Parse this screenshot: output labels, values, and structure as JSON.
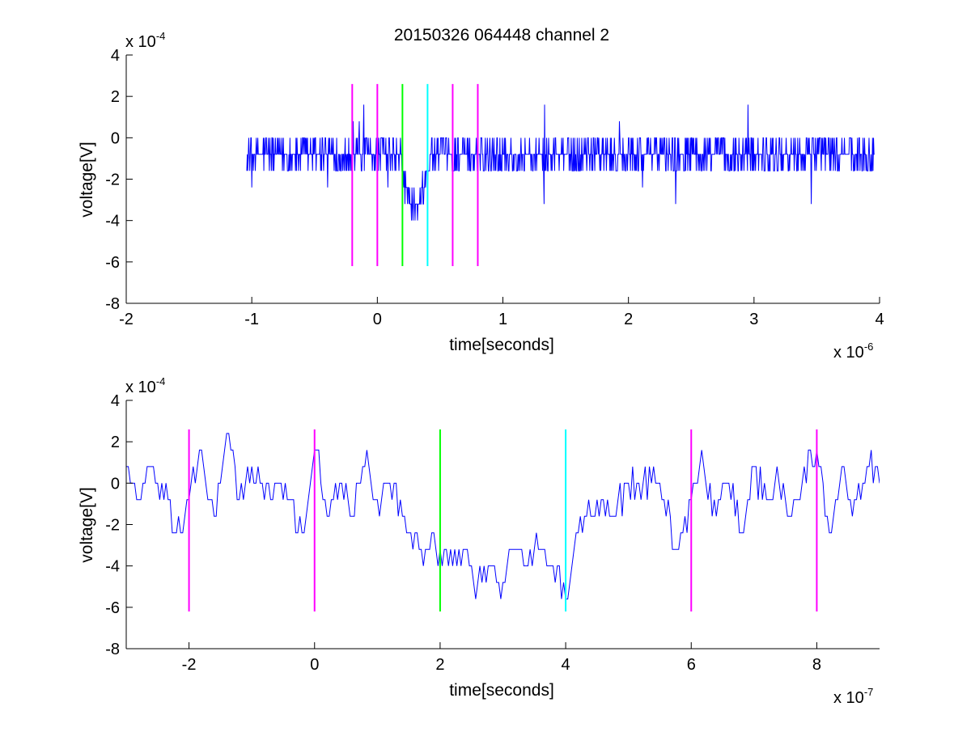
{
  "chart_data": [
    {
      "type": "line",
      "title": "20150326 064448 channel 2",
      "xlabel": "time[seconds]",
      "ylabel": "voltage[V]",
      "x_multiplier_label": "x 10",
      "x_multiplier_exp": "-6",
      "y_multiplier_label": "x 10",
      "y_multiplier_exp": "-4",
      "xlim": [
        -2,
        4
      ],
      "ylim": [
        -8,
        4
      ],
      "x_ticks": [
        -2,
        -1,
        0,
        1,
        2,
        3,
        4
      ],
      "x_tick_labels": [
        "-2",
        "-1",
        "0",
        "1",
        "2",
        "3",
        "4"
      ],
      "y_ticks": [
        -8,
        -6,
        -4,
        -2,
        0,
        2,
        4
      ],
      "y_tick_labels": [
        "-8",
        "-6",
        "-4",
        "-2",
        "0",
        "2",
        "4"
      ],
      "grid": false,
      "series": [
        {
          "color": "#0000ff",
          "x_range": [
            -1.04,
            3.96
          ],
          "baseline": -0.8,
          "noise_amp": 0.8,
          "quantum": 0.8,
          "dip": {
            "from": 0.18,
            "to": 0.42,
            "depth": -3.4
          }
        }
      ],
      "markers": [
        {
          "x": -0.2,
          "color": "#ff00ff",
          "ymin": -6.2,
          "ymax": 2.6
        },
        {
          "x": 0.0,
          "color": "#ff00ff",
          "ymin": -6.2,
          "ymax": 2.6
        },
        {
          "x": 0.2,
          "color": "#00ff00",
          "ymin": -6.2,
          "ymax": 2.6
        },
        {
          "x": 0.4,
          "color": "#00ffff",
          "ymin": -6.2,
          "ymax": 2.6
        },
        {
          "x": 0.6,
          "color": "#ff00ff",
          "ymin": -6.2,
          "ymax": 2.6
        },
        {
          "x": 0.8,
          "color": "#ff00ff",
          "ymin": -6.2,
          "ymax": 2.6
        }
      ]
    },
    {
      "type": "line",
      "title": "",
      "xlabel": "time[seconds]",
      "ylabel": "voltage[V]",
      "x_multiplier_label": "x 10",
      "x_multiplier_exp": "-7",
      "y_multiplier_label": "x 10",
      "y_multiplier_exp": "-4",
      "xlim": [
        -3,
        9
      ],
      "ylim": [
        -8,
        4
      ],
      "x_ticks": [
        -2,
        0,
        2,
        4,
        6,
        8
      ],
      "x_tick_labels": [
        "-2",
        "0",
        "2",
        "4",
        "6",
        "8"
      ],
      "y_ticks": [
        -8,
        -6,
        -4,
        -2,
        0,
        2,
        4
      ],
      "y_tick_labels": [
        "-8",
        "-6",
        "-4",
        "-2",
        "0",
        "2",
        "4"
      ],
      "grid": false,
      "series": [
        {
          "color": "#0000ff",
          "x": [
            -3.0,
            -2.8,
            -2.6,
            -2.4,
            -2.2,
            -2.0,
            -1.8,
            -1.6,
            -1.4,
            -1.2,
            -1.0,
            -0.8,
            -0.6,
            -0.4,
            -0.2,
            0.0,
            0.2,
            0.4,
            0.6,
            0.8,
            1.0,
            1.2,
            1.4,
            1.6,
            1.8,
            2.0,
            2.2,
            2.4,
            2.6,
            2.8,
            3.0,
            3.2,
            3.4,
            3.6,
            3.8,
            4.0,
            4.2,
            4.4,
            4.6,
            4.8,
            5.0,
            5.2,
            5.4,
            5.6,
            5.8,
            6.0,
            6.2,
            6.4,
            6.6,
            6.8,
            7.0,
            7.2,
            7.4,
            7.6,
            7.8,
            8.0,
            8.2,
            8.4,
            8.6,
            8.8,
            9.0
          ],
          "y": [
            0.8,
            -0.8,
            0.8,
            -0.8,
            -2.4,
            -0.8,
            1.6,
            -1.6,
            2.4,
            -0.8,
            0.8,
            -0.8,
            0.0,
            -0.8,
            -2.4,
            1.6,
            -1.6,
            0.0,
            -1.6,
            0.8,
            -0.8,
            0.0,
            -1.6,
            -2.4,
            -3.2,
            -3.2,
            -4.0,
            -3.2,
            -4.8,
            -4.0,
            -4.8,
            -3.2,
            -4.0,
            -3.2,
            -4.0,
            -5.6,
            -2.4,
            -1.6,
            -0.8,
            -1.6,
            0.0,
            -0.8,
            0.8,
            -1.6,
            -3.2,
            -0.8,
            0.8,
            -1.6,
            0.0,
            -2.4,
            0.8,
            -0.8,
            0.0,
            -1.6,
            0.8,
            1.6,
            -2.4,
            0.8,
            -0.8,
            0.8,
            0.0
          ],
          "noise_amp": 0.8,
          "quantum": 0.8
        }
      ],
      "markers": [
        {
          "x": -2,
          "color": "#ff00ff",
          "ymin": -6.2,
          "ymax": 2.6
        },
        {
          "x": 0,
          "color": "#ff00ff",
          "ymin": -6.2,
          "ymax": 2.6
        },
        {
          "x": 2,
          "color": "#00ff00",
          "ymin": -6.2,
          "ymax": 2.6
        },
        {
          "x": 4,
          "color": "#00ffff",
          "ymin": -6.2,
          "ymax": 2.6
        },
        {
          "x": 6,
          "color": "#ff00ff",
          "ymin": -6.2,
          "ymax": 2.6
        },
        {
          "x": 8,
          "color": "#ff00ff",
          "ymin": -6.2,
          "ymax": 2.6
        }
      ]
    }
  ]
}
